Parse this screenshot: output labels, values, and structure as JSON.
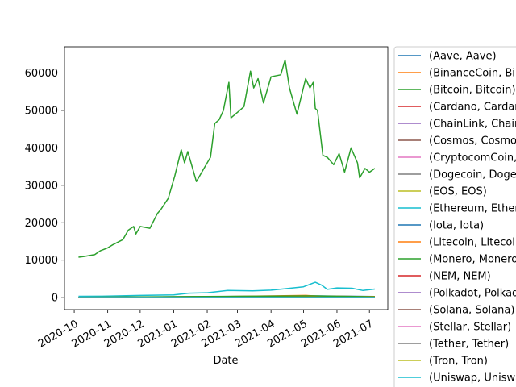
{
  "chart_data": {
    "type": "line",
    "title": "",
    "xlabel": "Date",
    "ylabel": "",
    "x_ticks": [
      "2020-10",
      "2020-11",
      "2020-12",
      "2021-01",
      "2021-02",
      "2021-03",
      "2021-04",
      "2021-05",
      "2021-06",
      "2021-07"
    ],
    "y_ticks": [
      0,
      10000,
      20000,
      30000,
      40000,
      50000,
      60000
    ],
    "ylim": [
      -3200,
      67000
    ],
    "xlim": [
      "2020-09-22",
      "2021-07-18"
    ],
    "grid": false,
    "legend_position": "right (outside plot, clipped)",
    "series": [
      {
        "name": "(Aave, Aave)",
        "color": "#1f77b4",
        "x": [
          "2020-10-05",
          "2021-05-15",
          "2021-07-06"
        ],
        "y": [
          50,
          450,
          300
        ]
      },
      {
        "name": "(BinanceCoin, BinanceCoin)",
        "color": "#ff7f0e",
        "x": [
          "2020-10-05",
          "2021-02-20",
          "2021-05-03",
          "2021-05-15",
          "2021-06-20",
          "2021-07-06"
        ],
        "y": [
          30,
          300,
          600,
          400,
          300,
          300
        ]
      },
      {
        "name": "(Bitcoin, Bitcoin)",
        "color": "#2ca02c",
        "x": [
          "2020-10-05",
          "2020-10-10",
          "2020-10-20",
          "2020-10-25",
          "2020-11-01",
          "2020-11-05",
          "2020-11-15",
          "2020-11-20",
          "2020-11-25",
          "2020-11-27",
          "2020-12-01",
          "2020-12-10",
          "2020-12-17",
          "2020-12-20",
          "2020-12-27",
          "2021-01-02",
          "2021-01-08",
          "2021-01-11",
          "2021-01-14",
          "2021-01-22",
          "2021-01-25",
          "2021-01-29",
          "2021-02-04",
          "2021-02-08",
          "2021-02-12",
          "2021-02-16",
          "2021-02-21",
          "2021-02-23",
          "2021-03-01",
          "2021-03-07",
          "2021-03-13",
          "2021-03-16",
          "2021-03-20",
          "2021-03-25",
          "2021-04-01",
          "2021-04-10",
          "2021-04-14",
          "2021-04-18",
          "2021-04-25",
          "2021-05-03",
          "2021-05-07",
          "2021-05-10",
          "2021-05-12",
          "2021-05-14",
          "2021-05-19",
          "2021-05-23",
          "2021-05-29",
          "2021-06-03",
          "2021-06-08",
          "2021-06-14",
          "2021-06-20",
          "2021-06-22",
          "2021-06-27",
          "2021-07-01",
          "2021-07-06"
        ],
        "y": [
          10800,
          11000,
          11500,
          12500,
          13300,
          14000,
          15500,
          18000,
          19000,
          17000,
          19000,
          18500,
          22500,
          23500,
          26500,
          32500,
          39500,
          36000,
          39000,
          31000,
          32500,
          34500,
          37500,
          46500,
          47500,
          50000,
          57500,
          48000,
          49500,
          51000,
          60500,
          56000,
          58500,
          52000,
          59000,
          59500,
          63500,
          56000,
          49000,
          58500,
          56000,
          57500,
          50500,
          50000,
          38000,
          37500,
          35500,
          38500,
          33500,
          40000,
          36000,
          32000,
          34500,
          33500,
          34500
        ]
      },
      {
        "name": "(Cardano, Cardano)",
        "color": "#d62728",
        "x": [
          "2020-10-05",
          "2021-07-06"
        ],
        "y": [
          0,
          1
        ]
      },
      {
        "name": "(ChainLink, ChainLink)",
        "color": "#9467bd",
        "x": [
          "2020-10-05",
          "2021-05-10",
          "2021-07-06"
        ],
        "y": [
          10,
          45,
          18
        ]
      },
      {
        "name": "(Cosmos, Cosmos)",
        "color": "#8c564b",
        "x": [
          "2020-10-05",
          "2021-05-10",
          "2021-07-06"
        ],
        "y": [
          5,
          25,
          12
        ]
      },
      {
        "name": "(CryptocomCoin, CryptocomCoin)",
        "color": "#e377c2",
        "x": [
          "2020-10-05",
          "2021-07-06"
        ],
        "y": [
          0,
          0
        ]
      },
      {
        "name": "(Dogecoin, Dogecoin)",
        "color": "#7f7f7f",
        "x": [
          "2020-10-05",
          "2021-07-06"
        ],
        "y": [
          0,
          0
        ]
      },
      {
        "name": "(EOS, EOS)",
        "color": "#bcbd22",
        "x": [
          "2020-10-05",
          "2021-07-06"
        ],
        "y": [
          3,
          4
        ]
      },
      {
        "name": "(Ethereum, Ethereum)",
        "color": "#17becf",
        "x": [
          "2020-10-05",
          "2020-11-01",
          "2020-12-01",
          "2021-01-01",
          "2021-01-15",
          "2021-02-01",
          "2021-02-20",
          "2021-03-15",
          "2021-04-01",
          "2021-04-15",
          "2021-05-01",
          "2021-05-12",
          "2021-05-18",
          "2021-05-23",
          "2021-06-01",
          "2021-06-15",
          "2021-06-25",
          "2021-07-06"
        ],
        "y": [
          350,
          400,
          600,
          750,
          1200,
          1300,
          1900,
          1800,
          2000,
          2400,
          2900,
          4100,
          3300,
          2200,
          2600,
          2500,
          1900,
          2300
        ]
      },
      {
        "name": "(Iota, Iota)",
        "color": "#1f77b4",
        "x": [
          "2020-10-05",
          "2021-07-06"
        ],
        "y": [
          0,
          1
        ]
      },
      {
        "name": "(Litecoin, Litecoin)",
        "color": "#ff7f0e",
        "x": [
          "2020-10-05",
          "2021-05-10",
          "2021-07-06"
        ],
        "y": [
          50,
          350,
          140
        ]
      },
      {
        "name": "(Monero, Monero)",
        "color": "#2ca02c",
        "x": [
          "2020-10-05",
          "2021-05-10",
          "2021-07-06"
        ],
        "y": [
          100,
          450,
          220
        ]
      },
      {
        "name": "(NEM, NEM)",
        "color": "#d62728",
        "x": [
          "2020-10-05",
          "2021-07-06"
        ],
        "y": [
          0,
          0
        ]
      },
      {
        "name": "(Polkadot, Polkadot)",
        "color": "#9467bd",
        "x": [
          "2020-10-05",
          "2021-05-15",
          "2021-07-06"
        ],
        "y": [
          4,
          45,
          16
        ]
      },
      {
        "name": "(Solana, Solana)",
        "color": "#8c564b",
        "x": [
          "2020-10-05",
          "2021-05-15",
          "2021-07-06"
        ],
        "y": [
          2,
          50,
          33
        ]
      },
      {
        "name": "(Stellar, Stellar)",
        "color": "#e377c2",
        "x": [
          "2020-10-05",
          "2021-07-06"
        ],
        "y": [
          0,
          0
        ]
      },
      {
        "name": "(Tether, Tether)",
        "color": "#7f7f7f",
        "x": [
          "2020-10-05",
          "2021-07-06"
        ],
        "y": [
          1,
          1
        ]
      },
      {
        "name": "(Tron, Tron)",
        "color": "#bcbd22",
        "x": [
          "2020-10-05",
          "2021-07-06"
        ],
        "y": [
          0,
          0
        ]
      },
      {
        "name": "(Uniswap, Uniswap)",
        "color": "#17becf",
        "x": [
          "2020-10-05",
          "2021-05-05",
          "2021-07-06"
        ],
        "y": [
          4,
          40,
          20
        ]
      }
    ]
  }
}
